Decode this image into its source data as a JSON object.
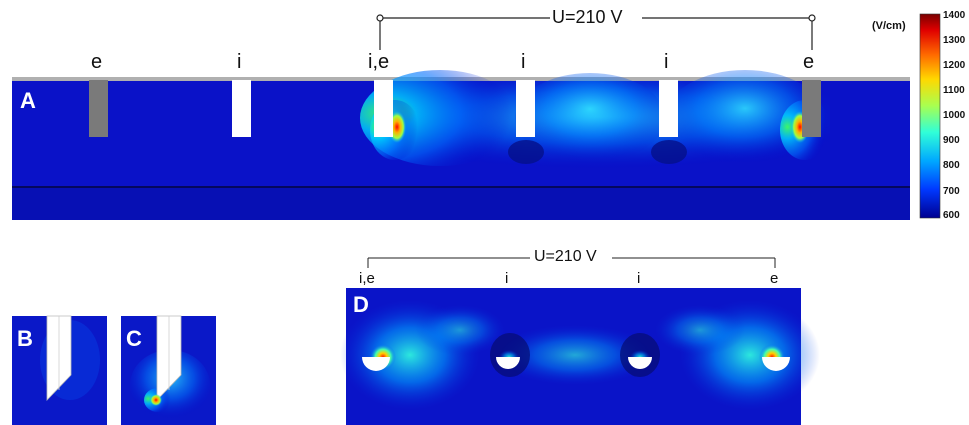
{
  "panel_a": {
    "letter": "A",
    "voltage_label": "U=210 V",
    "electrodes": [
      "e",
      "i",
      "i,e",
      "i",
      "i",
      "e"
    ]
  },
  "panel_b": {
    "letter": "B"
  },
  "panel_c": {
    "letter": "C"
  },
  "panel_d": {
    "letter": "D",
    "voltage_label": "U=210 V",
    "electrodes": [
      "i,e",
      "i",
      "i",
      "e"
    ]
  },
  "colorbar": {
    "unit": "(V/cm)",
    "ticks": [
      "1400",
      "1300",
      "1200",
      "1100",
      "1000",
      "900",
      "800",
      "700",
      "600"
    ],
    "colors": [
      "#8b0000",
      "#e01010",
      "#ff7a00",
      "#ffd400",
      "#b8ff40",
      "#30ffd0",
      "#00b0ff",
      "#0050ff",
      "#00008a"
    ]
  }
}
